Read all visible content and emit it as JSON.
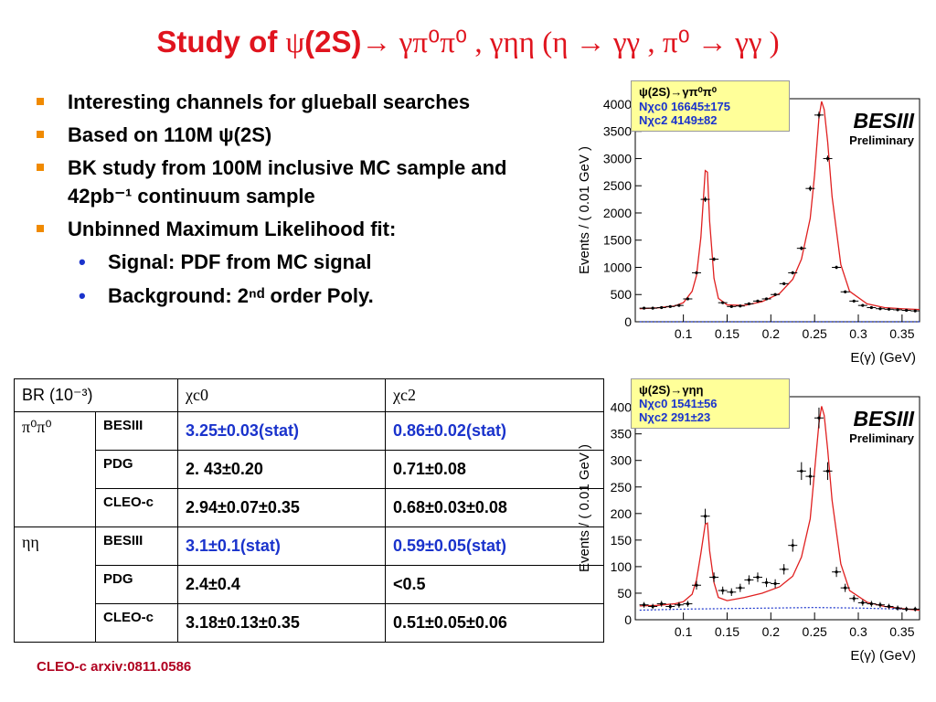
{
  "title": {
    "prefix": "Study of ",
    "psi": "ψ",
    "mid": "(2S)",
    "rest": "→ γπ⁰π⁰ , γηη (η → γγ ,  π⁰ → γγ )"
  },
  "bullets": [
    {
      "level": 1,
      "text": "Interesting channels for glueball searches"
    },
    {
      "level": 1,
      "text": "Based on 110M ψ(2S)"
    },
    {
      "level": 1,
      "text": "BK study from 100M inclusive MC sample and 42pb⁻¹ continuum  sample"
    },
    {
      "level": 1,
      "text": "Unbinned Maximum Likelihood fit:"
    },
    {
      "level": 2,
      "text": "Signal:  PDF from MC signal"
    },
    {
      "level": 2,
      "text": "Background:  2ⁿᵈ order Poly."
    }
  ],
  "table": {
    "header": [
      "BR (10⁻³)",
      "χc0",
      "χc2"
    ],
    "groups": [
      {
        "label": "π⁰π⁰",
        "rows": [
          {
            "source": "BESIII",
            "c0": "3.25±0.03(stat)",
            "c2": "0.86±0.02(stat)",
            "highlight": true
          },
          {
            "source": "PDG",
            "c0": "2. 43±0.20",
            "c2": "0.71±0.08",
            "highlight": false
          },
          {
            "source": "CLEO-c",
            "c0": "2.94±0.07±0.35",
            "c2": "0.68±0.03±0.08",
            "highlight": false
          }
        ]
      },
      {
        "label": "ηη",
        "rows": [
          {
            "source": "BESIII",
            "c0": "3.1±0.1(stat)",
            "c2": "0.59±0.05(stat)",
            "highlight": true
          },
          {
            "source": "PDG",
            "c0": "2.4±0.4",
            "c2": "<0.5",
            "highlight": false
          },
          {
            "source": "CLEO-c",
            "c0": "3.18±0.13±0.35",
            "c2": "0.51±0.05±0.06",
            "highlight": false
          }
        ]
      }
    ]
  },
  "citation": "CLEO-c  arxiv:0811.0586",
  "colors": {
    "title": "#e0141e",
    "blue": "#1a33cc",
    "bullet": "#f08a00",
    "legend_bg": "#ffff99",
    "fit": "#e02020",
    "bkg": "#1a33cc",
    "cite": "#b00020"
  },
  "chart_data": [
    {
      "type": "scatter",
      "title": "",
      "legend": {
        "line1": "ψ(2S)→γπ⁰π⁰",
        "line2": "Nχc0 16645±175",
        "line3": "Nχc2 4149±82"
      },
      "watermark": {
        "big": "BESIII",
        "small": "Preliminary"
      },
      "xlabel": "E(γ) (GeV)",
      "ylabel": "Events / ( 0.01 GeV )",
      "xlim": [
        0.045,
        0.37
      ],
      "ylim": [
        0,
        4100
      ],
      "xticks": [
        0.1,
        0.15,
        0.2,
        0.25,
        0.3,
        0.35
      ],
      "xtick_labels": [
        "0.1",
        "0.15",
        "0.2",
        "0.25",
        "0.3",
        "0.35"
      ],
      "yticks": [
        0,
        500,
        1000,
        1500,
        2000,
        2500,
        3000,
        3500,
        4000
      ],
      "ytick_labels": [
        "0",
        "500",
        "1000",
        "1500",
        "2000",
        "2500",
        "3000",
        "3500",
        "4000"
      ],
      "x": [
        0.055,
        0.065,
        0.075,
        0.085,
        0.095,
        0.105,
        0.115,
        0.125,
        0.135,
        0.145,
        0.155,
        0.165,
        0.175,
        0.185,
        0.195,
        0.205,
        0.215,
        0.225,
        0.235,
        0.245,
        0.255,
        0.265,
        0.275,
        0.285,
        0.295,
        0.305,
        0.315,
        0.325,
        0.335,
        0.345,
        0.355,
        0.365
      ],
      "y": [
        250,
        250,
        260,
        280,
        300,
        420,
        900,
        2250,
        1150,
        350,
        280,
        290,
        330,
        380,
        420,
        500,
        700,
        900,
        1350,
        2450,
        3800,
        3000,
        1000,
        550,
        380,
        300,
        260,
        240,
        230,
        220,
        210,
        200
      ],
      "fit": {
        "x": [
          0.05,
          0.07,
          0.09,
          0.1,
          0.11,
          0.115,
          0.12,
          0.125,
          0.1275,
          0.13,
          0.135,
          0.14,
          0.15,
          0.17,
          0.19,
          0.21,
          0.225,
          0.235,
          0.245,
          0.25,
          0.255,
          0.258,
          0.261,
          0.265,
          0.27,
          0.28,
          0.29,
          0.31,
          0.33,
          0.35,
          0.37
        ],
        "y": [
          240,
          255,
          290,
          350,
          560,
          850,
          1550,
          2780,
          2750,
          1850,
          800,
          430,
          310,
          300,
          370,
          520,
          780,
          1150,
          1900,
          2700,
          3750,
          4050,
          3900,
          3300,
          2300,
          1050,
          560,
          330,
          260,
          240,
          225
        ]
      },
      "bkg": {
        "x": [
          0.05,
          0.37
        ],
        "y": [
          0,
          0
        ]
      }
    },
    {
      "type": "scatter",
      "title": "",
      "legend": {
        "line1": "ψ(2S)→γηη",
        "line2": "Nχc0  1541±56",
        "line3": "Nχc2   291±23"
      },
      "watermark": {
        "big": "BESIII",
        "small": "Preliminary"
      },
      "xlabel": "E(γ) (GeV)",
      "ylabel": "Events / ( 0.01 GeV )",
      "xlim": [
        0.045,
        0.37
      ],
      "ylim": [
        0,
        420
      ],
      "xticks": [
        0.1,
        0.15,
        0.2,
        0.25,
        0.3,
        0.35
      ],
      "xtick_labels": [
        "0.1",
        "0.15",
        "0.2",
        "0.25",
        "0.3",
        "0.35"
      ],
      "yticks": [
        0,
        50,
        100,
        150,
        200,
        250,
        300,
        350,
        400
      ],
      "ytick_labels": [
        "0",
        "50",
        "100",
        "150",
        "200",
        "250",
        "300",
        "350",
        "400"
      ],
      "x": [
        0.055,
        0.065,
        0.075,
        0.085,
        0.095,
        0.105,
        0.115,
        0.125,
        0.135,
        0.145,
        0.155,
        0.165,
        0.175,
        0.185,
        0.195,
        0.205,
        0.215,
        0.225,
        0.235,
        0.245,
        0.255,
        0.265,
        0.275,
        0.285,
        0.295,
        0.305,
        0.315,
        0.325,
        0.335,
        0.345,
        0.355,
        0.365
      ],
      "y": [
        28,
        25,
        30,
        25,
        28,
        30,
        65,
        195,
        80,
        55,
        52,
        60,
        75,
        80,
        70,
        68,
        95,
        140,
        280,
        270,
        380,
        280,
        90,
        60,
        40,
        32,
        30,
        28,
        25,
        22,
        20,
        20
      ],
      "fit": {
        "x": [
          0.05,
          0.07,
          0.09,
          0.1,
          0.11,
          0.115,
          0.12,
          0.125,
          0.1275,
          0.13,
          0.135,
          0.14,
          0.15,
          0.17,
          0.19,
          0.21,
          0.225,
          0.235,
          0.245,
          0.25,
          0.255,
          0.258,
          0.261,
          0.265,
          0.27,
          0.28,
          0.29,
          0.31,
          0.33,
          0.35,
          0.37
        ],
        "y": [
          26,
          27,
          30,
          34,
          48,
          75,
          125,
          180,
          182,
          130,
          70,
          42,
          36,
          42,
          50,
          62,
          82,
          118,
          190,
          280,
          370,
          402,
          385,
          320,
          225,
          105,
          55,
          33,
          25,
          21,
          18
        ]
      },
      "bkg": {
        "x": [
          0.05,
          0.1,
          0.15,
          0.2,
          0.25,
          0.3,
          0.35,
          0.37
        ],
        "y": [
          18,
          20,
          21,
          22,
          23,
          22,
          20,
          19
        ]
      }
    }
  ]
}
